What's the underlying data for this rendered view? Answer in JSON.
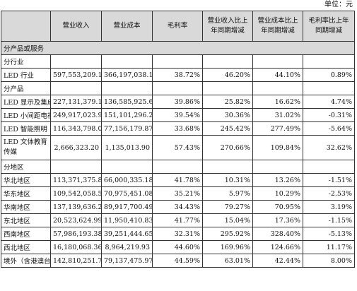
{
  "unit": "单位：元",
  "headers": [
    "",
    "营业收入",
    "营业成本",
    "毛利率",
    "营业收入比上年同期增减",
    "营业成本比上年同期增减",
    "毛利率比上年同期增减"
  ],
  "section_title": "分产品或服务",
  "industry_title": "分行业",
  "industry_rows": [
    [
      "LED 行业",
      "597,553,209.11",
      "366,197,038.13",
      "38.72%",
      "46.20%",
      "44.10%",
      "0.89%"
    ]
  ],
  "product_title": "分产品",
  "product_rows": [
    [
      "LED 显示及集成",
      "227,131,379.14",
      "136,585,925.69",
      "39.86%",
      "25.82%",
      "16.62%",
      "4.74%"
    ],
    [
      "LED 小间距电视",
      "249,917,023.95",
      "151,101,296.22",
      "39.54%",
      "30.36%",
      "31.02%",
      "-0.31%"
    ],
    [
      "LED 智能照明",
      "116,343,798.01",
      "77,156,179.87",
      "33.68%",
      "245.42%",
      "277.49%",
      "-5.64%"
    ],
    [
      "LED 文体教育传媒",
      "2,666,323.20",
      "1,135,013.90",
      "57.43%",
      "270.66%",
      "109.84%",
      "32.62%"
    ]
  ],
  "region_title": "分地区",
  "region_rows": [
    [
      "华北地区",
      "113,371,375.84",
      "66,000,335.18",
      "41.78%",
      "10.31%",
      "13.26%",
      "-1.51%"
    ],
    [
      "华东地区",
      "109,542,058.55",
      "70,975,451.08",
      "35.21%",
      "5.97%",
      "10.29%",
      "-2.53%"
    ],
    [
      "华南地区",
      "137,139,636.24",
      "89,917,700.49",
      "34.43%",
      "79.27%",
      "70.95%",
      "3.19%"
    ],
    [
      "东北地区",
      "20,523,624.99",
      "11,950,410.83",
      "41.77%",
      "15.04%",
      "17.36%",
      "-1.15%"
    ],
    [
      "西南地区",
      "57,986,193.38",
      "39,251,444.65",
      "32.31%",
      "295.92%",
      "328.40%",
      "-5.13%"
    ],
    [
      "西北地区",
      "16,180,068.36",
      "8,964,219.93",
      "44.60%",
      "169.96%",
      "124.66%",
      "11.17%"
    ],
    [
      "境外（含港澳台）",
      "142,810,251.75",
      "79,137,475.97",
      "44.59%",
      "63.01%",
      "42.44%",
      "8.00%"
    ]
  ]
}
